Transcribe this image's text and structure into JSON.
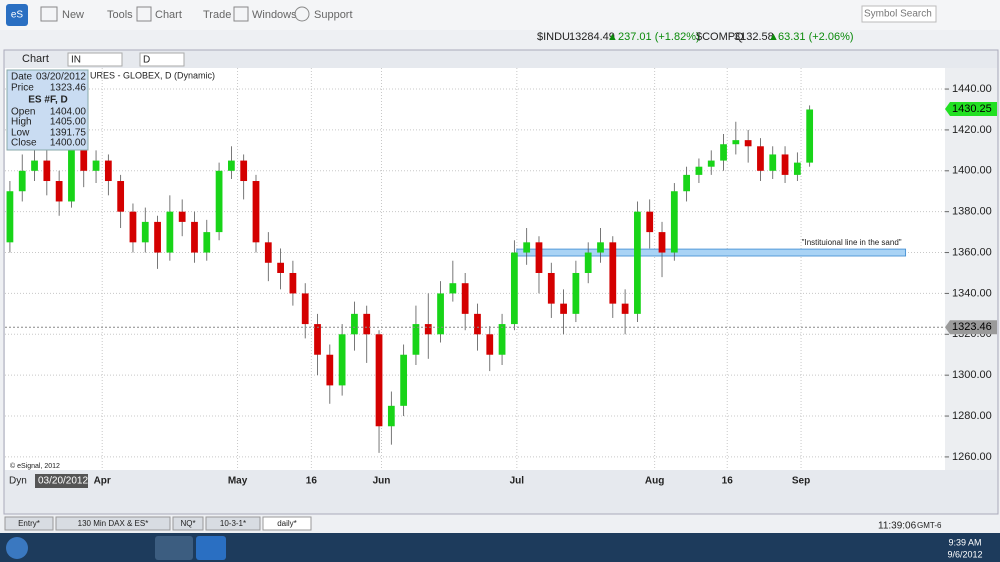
{
  "toolbar": {
    "app": "eS",
    "items": [
      "New",
      "Tools",
      "Chart",
      "Trade",
      "Windows",
      "Support"
    ],
    "search": "Symbol Search"
  },
  "tickers": [
    {
      "symbol": "$INDU",
      "last": "13284.49",
      "change": "237.01 (+1.82%)"
    },
    {
      "symbol": "$COMPQ",
      "last": "3132.58",
      "change": "63.31 (+2.06%)"
    }
  ],
  "chart_window": {
    "title": "Chart",
    "symbol": "IN",
    "interval": "D"
  },
  "chart_data": {
    "type": "candlestick",
    "subtitle": "URES - GLOBEX, D (Dynamic)",
    "copyright": "© eSignal, 2012",
    "info": {
      "rows": [
        [
          "Date",
          "03/20/2012"
        ],
        [
          "Price",
          "1323.46"
        ]
      ],
      "symbol": "ES #F, D",
      "ohlc": [
        [
          "Open",
          "1404.00"
        ],
        [
          "High",
          "1405.00"
        ],
        [
          "Low",
          "1391.75"
        ],
        [
          "Close",
          "1400.00"
        ]
      ]
    },
    "open": [
      1365,
      1390,
      1400,
      1405,
      1395,
      1385,
      1410,
      1400,
      1405,
      1395,
      1380,
      1365,
      1375,
      1360,
      1380,
      1375,
      1360,
      1370,
      1400,
      1405,
      1395,
      1365,
      1355,
      1350,
      1340,
      1325,
      1310,
      1295,
      1320,
      1330,
      1320,
      1275,
      1285,
      1310,
      1325,
      1320,
      1340,
      1345,
      1330,
      1320,
      1310,
      1325,
      1360,
      1365,
      1350,
      1335,
      1330,
      1350,
      1360,
      1365,
      1335,
      1330,
      1380,
      1370,
      1360,
      1390,
      1398,
      1402,
      1405,
      1413,
      1415,
      1412,
      1400,
      1408,
      1398,
      1404
    ],
    "high": [
      1395,
      1408,
      1412,
      1410,
      1400,
      1416,
      1414,
      1410,
      1408,
      1398,
      1384,
      1382,
      1378,
      1388,
      1386,
      1380,
      1376,
      1404,
      1412,
      1408,
      1398,
      1370,
      1362,
      1356,
      1345,
      1330,
      1315,
      1325,
      1336,
      1334,
      1322,
      1292,
      1315,
      1334,
      1340,
      1346,
      1356,
      1350,
      1335,
      1324,
      1330,
      1366,
      1372,
      1368,
      1355,
      1342,
      1356,
      1365,
      1372,
      1368,
      1342,
      1385,
      1386,
      1375,
      1394,
      1402,
      1406,
      1410,
      1418,
      1424,
      1420,
      1416,
      1412,
      1412,
      1409,
      1432
    ],
    "low": [
      1360,
      1385,
      1395,
      1388,
      1378,
      1382,
      1392,
      1394,
      1388,
      1372,
      1360,
      1360,
      1352,
      1356,
      1368,
      1355,
      1356,
      1366,
      1396,
      1386,
      1360,
      1346,
      1342,
      1334,
      1318,
      1300,
      1286,
      1290,
      1312,
      1306,
      1262,
      1266,
      1280,
      1305,
      1308,
      1316,
      1336,
      1322,
      1312,
      1302,
      1305,
      1322,
      1354,
      1340,
      1328,
      1320,
      1326,
      1345,
      1355,
      1328,
      1320,
      1326,
      1362,
      1348,
      1356,
      1385,
      1394,
      1398,
      1400,
      1408,
      1404,
      1395,
      1396,
      1394,
      1395,
      1402
    ],
    "close": [
      1390,
      1400,
      1405,
      1395,
      1385,
      1410,
      1400,
      1405,
      1395,
      1380,
      1365,
      1375,
      1360,
      1380,
      1375,
      1360,
      1370,
      1400,
      1405,
      1395,
      1365,
      1355,
      1350,
      1340,
      1325,
      1310,
      1295,
      1320,
      1330,
      1320,
      1275,
      1285,
      1310,
      1325,
      1320,
      1340,
      1345,
      1330,
      1320,
      1310,
      1325,
      1360,
      1365,
      1350,
      1335,
      1330,
      1350,
      1360,
      1365,
      1335,
      1330,
      1380,
      1370,
      1360,
      1390,
      1398,
      1402,
      1405,
      1413,
      1415,
      1412,
      1400,
      1408,
      1398,
      1404,
      1430
    ],
    "up_color": "#18d418",
    "down_color": "#d40000",
    "xlim": [
      -0.4,
      76
    ],
    "xticks": [
      {
        "value": 7.5,
        "label": "Apr"
      },
      {
        "value": 18.5,
        "label": "May"
      },
      {
        "value": 24.5,
        "label": "16"
      },
      {
        "value": 30.2,
        "label": "Jun"
      },
      {
        "value": 41.2,
        "label": "Jul"
      },
      {
        "value": 52.4,
        "label": "Aug"
      },
      {
        "value": 58.3,
        "label": "16"
      },
      {
        "value": 64.3,
        "label": "Sep"
      }
    ],
    "ylim": [
      1253.6,
      1450.3
    ],
    "yticks": [
      {
        "value": 1260,
        "label": "1260.00"
      },
      {
        "value": 1280,
        "label": "1280.00"
      },
      {
        "value": 1300,
        "label": "1300.00"
      },
      {
        "value": 1320,
        "label": "1320.00"
      },
      {
        "value": 1340,
        "label": "1340.00"
      },
      {
        "value": 1360,
        "label": "1360.00"
      },
      {
        "value": 1380,
        "label": "1380.00"
      },
      {
        "value": 1400,
        "label": "1400.00"
      },
      {
        "value": 1420,
        "label": "1420.00"
      },
      {
        "value": 1440,
        "label": "1440.00"
      }
    ],
    "grid": true,
    "last_price": 1430.25,
    "cursor_price": 1323.46,
    "cursor_date": "03/20/2012",
    "mode": "Dyn",
    "zone": {
      "label": "\"Instituional line in the sand\"",
      "low": 1358.3,
      "high": 1361.7,
      "start": 41.2,
      "end": 72.8
    }
  },
  "tabs": [
    "Entry*",
    "130 Min DAX & ES*",
    "NQ*",
    "10-3-1*",
    "daily*"
  ],
  "status": {
    "time": "11:39:06",
    "zone": "GMT-6"
  },
  "taskbar": {
    "time": "9:39 AM",
    "date": "9/6/2012"
  }
}
